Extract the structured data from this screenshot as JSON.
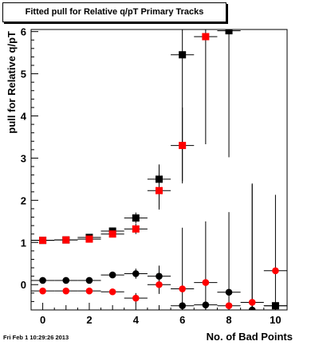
{
  "footer": {
    "timestamp": "Fri Feb  1 10:29:26 2013"
  },
  "chart_data": {
    "type": "scatter",
    "title": "Fitted pull for Relative q/pT Primary Tracks",
    "xlabel": "No. of Bad Points",
    "ylabel": "pull for Relative q/pT",
    "xlim": [
      -0.5,
      10.5
    ],
    "ylim": [
      -0.6,
      6.05
    ],
    "x_ticks": [
      0,
      2,
      4,
      6,
      8,
      10
    ],
    "y_ticks": [
      0,
      1,
      2,
      3,
      4,
      5,
      6
    ],
    "grid": true,
    "series": [
      {
        "marker": "square",
        "color": "#000000",
        "points": [
          {
            "x": 0,
            "y": 1.05,
            "err": 0.05
          },
          {
            "x": 1,
            "y": 1.06,
            "err": 0.05
          },
          {
            "x": 2,
            "y": 1.12,
            "err": 0.06
          },
          {
            "x": 3,
            "y": 1.27,
            "err": 0.08
          },
          {
            "x": 4,
            "y": 1.58,
            "err": 0.13
          },
          {
            "x": 5,
            "y": 2.5,
            "err": 0.35
          },
          {
            "x": 6,
            "y": 5.45,
            "err": 3.0
          },
          {
            "x": 7,
            "y": 6.5,
            "err": 0.0
          },
          {
            "x": 8,
            "y": 6.02,
            "err": 3.0
          },
          {
            "x": 10,
            "y": -0.5,
            "err": 0.0
          }
        ]
      },
      {
        "marker": "square",
        "color": "#ff0000",
        "points": [
          {
            "x": 0,
            "y": 1.05,
            "err": 0.04
          },
          {
            "x": 1,
            "y": 1.06,
            "err": 0.04
          },
          {
            "x": 2,
            "y": 1.08,
            "err": 0.05
          },
          {
            "x": 3,
            "y": 1.2,
            "err": 0.07
          },
          {
            "x": 4,
            "y": 1.32,
            "err": 0.12
          },
          {
            "x": 5,
            "y": 2.23,
            "err": 0.45
          },
          {
            "x": 6,
            "y": 3.3,
            "err": 0.9
          },
          {
            "x": 7,
            "y": 5.88,
            "err": 2.55
          },
          {
            "x": 8,
            "y": 6.5,
            "err": 0.0
          }
        ]
      },
      {
        "marker": "circle",
        "color": "#000000",
        "points": [
          {
            "x": 0,
            "y": 0.1,
            "err": 0.04
          },
          {
            "x": 1,
            "y": 0.1,
            "err": 0.04
          },
          {
            "x": 2,
            "y": 0.1,
            "err": 0.05
          },
          {
            "x": 3,
            "y": 0.23,
            "err": 0.07
          },
          {
            "x": 4,
            "y": 0.26,
            "err": 0.12
          },
          {
            "x": 5,
            "y": 0.2,
            "err": 0.25
          },
          {
            "x": 6,
            "y": -0.5,
            "err": 0.0
          },
          {
            "x": 7,
            "y": -0.48,
            "err": 0.0
          },
          {
            "x": 8,
            "y": -0.18,
            "err": 1.9
          },
          {
            "x": 9,
            "y": -0.6,
            "err": 3.0
          },
          {
            "x": 10,
            "y": -0.5,
            "err": 0.0
          }
        ]
      },
      {
        "marker": "circle",
        "color": "#ff0000",
        "points": [
          {
            "x": 0,
            "y": -0.15,
            "err": 0.04
          },
          {
            "x": 1,
            "y": -0.15,
            "err": 0.04
          },
          {
            "x": 2,
            "y": -0.15,
            "err": 0.05
          },
          {
            "x": 3,
            "y": -0.17,
            "err": 0.07
          },
          {
            "x": 4,
            "y": -0.32,
            "err": 0.12
          },
          {
            "x": 5,
            "y": 0.0,
            "err": 0.22
          },
          {
            "x": 6,
            "y": -0.1,
            "err": 1.45
          },
          {
            "x": 7,
            "y": 0.05,
            "err": 1.45
          },
          {
            "x": 8,
            "y": -0.5,
            "err": 0.0
          },
          {
            "x": 9,
            "y": -0.42,
            "err": 2.8
          },
          {
            "x": 10,
            "y": 0.33,
            "err": 1.8
          }
        ]
      }
    ]
  }
}
